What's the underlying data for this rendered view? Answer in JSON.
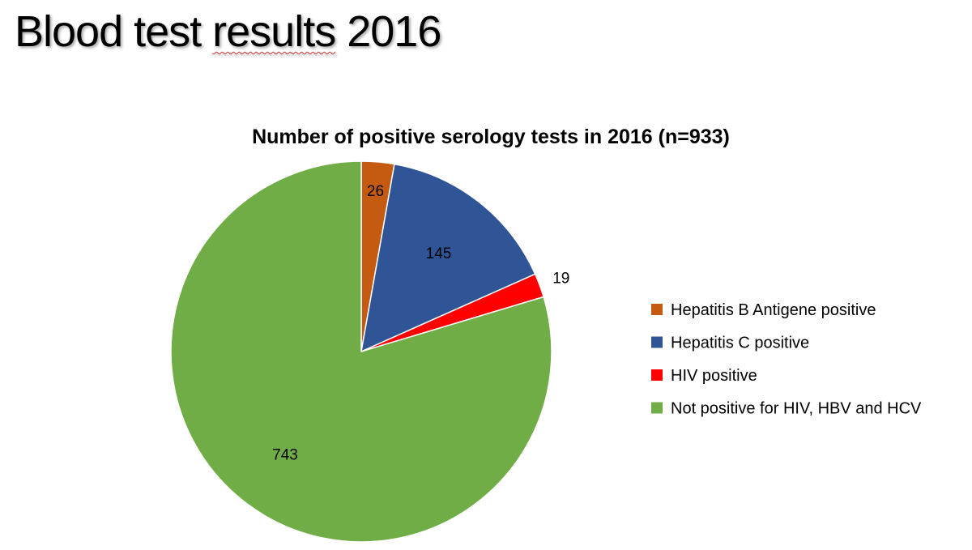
{
  "slide": {
    "title_word_1": "Blood test",
    "title_word_2": "results",
    "title_word_3": "2016"
  },
  "chart_data": {
    "type": "pie",
    "title": "Number of positive serology tests in 2016 (n=933)",
    "legend_position": "right",
    "start_angle_deg": 0,
    "direction": "clockwise",
    "slices": [
      {
        "label": "Hepatitis B Antigene positive",
        "value": 26,
        "color": "#C55A11"
      },
      {
        "label": "Hepatitis C positive",
        "value": 145,
        "color": "#2F5597"
      },
      {
        "label": "HIV positive",
        "value": 19,
        "color": "#FF0000"
      },
      {
        "label": "Not positive for HIV, HBV and HCV",
        "value": 743,
        "color": "#70AD47"
      }
    ]
  }
}
